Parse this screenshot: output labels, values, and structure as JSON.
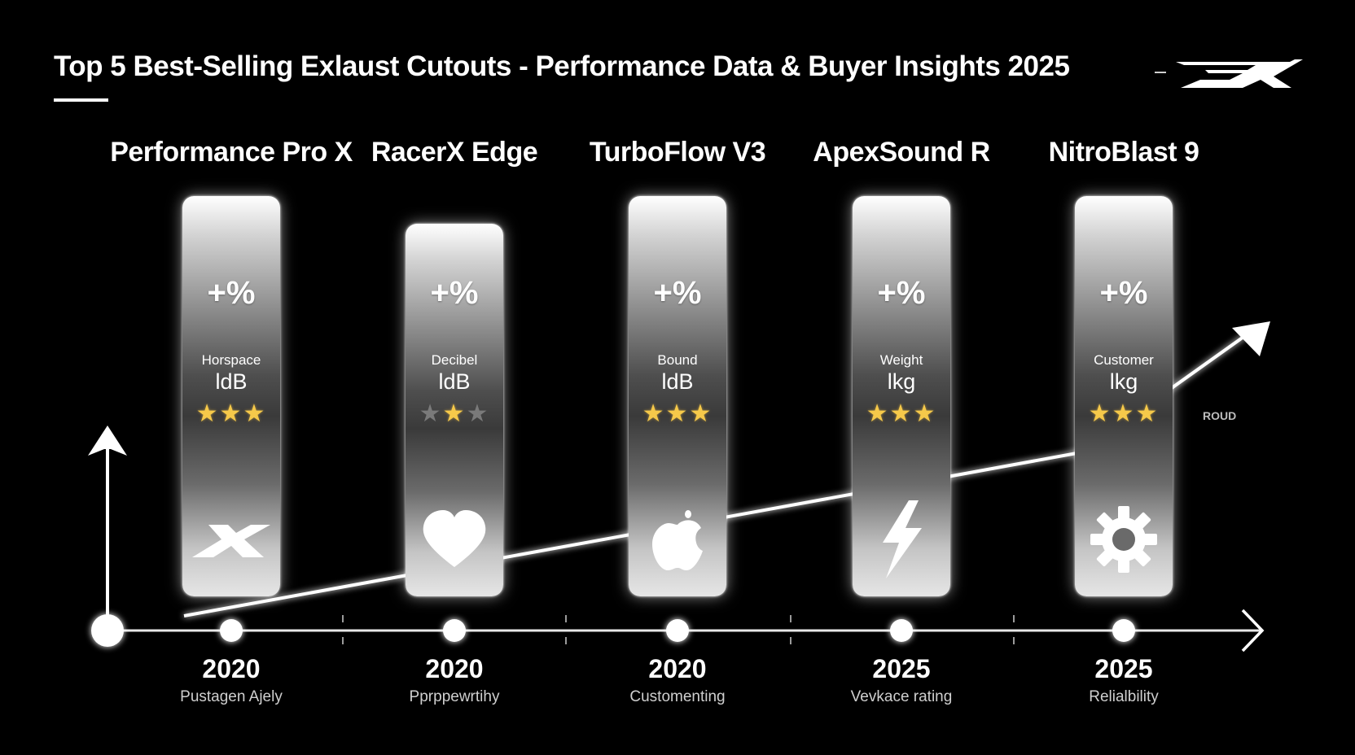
{
  "title": "Top 5 Best-Selling Exlaust Cutouts - Performance Data & Buyer Insights 2025",
  "chart_data": {
    "type": "bar",
    "title": "Top 5 Best-Selling Exlaust Cutouts - Performance Data & Buyer Insights 2025",
    "categories": [
      "Performance Pro X",
      "RacerX Edge",
      "TurboFlow V3",
      "ApexSound R",
      "NitroBlast 9"
    ],
    "bars": [
      {
        "name": "Performance Pro X",
        "value_text": "+%",
        "metric": "Horspace",
        "unit": "ldB",
        "stars": 3,
        "stars_max": 3,
        "icon": "x-logo-icon",
        "year": "2020",
        "caption": "Pustagen Ajely",
        "relative_height": 1.0
      },
      {
        "name": "RacerX Edge",
        "value_text": "+%",
        "metric": "Decibel",
        "unit": "ldB",
        "stars": 1,
        "stars_max": 3,
        "icon": "heart-icon",
        "year": "2020",
        "caption": "Pprppewrtihy",
        "relative_height": 0.93
      },
      {
        "name": "TurboFlow V3",
        "value_text": "+%",
        "metric": "Bound",
        "unit": "ldB",
        "stars": 3,
        "stars_max": 3,
        "icon": "apple-icon",
        "year": "2020",
        "caption": "Customenting",
        "relative_height": 1.0
      },
      {
        "name": "ApexSound R",
        "value_text": "+%",
        "metric": "Weight",
        "unit": "lkg",
        "stars": 3,
        "stars_max": 3,
        "icon": "lightning-icon",
        "year": "2025",
        "caption": "Vevkace rating",
        "relative_height": 1.0
      },
      {
        "name": "NitroBlast 9",
        "value_text": "+%",
        "metric": "Customer",
        "unit": "lkg",
        "stars": 3,
        "stars_max": 3,
        "icon": "gear-icon",
        "year": "2025",
        "caption": "Relialbility",
        "relative_height": 1.0
      }
    ],
    "trend": {
      "type": "line",
      "label": "ROUD",
      "direction": "up"
    },
    "xlabel": "",
    "ylabel": ""
  },
  "colors": {
    "background": "#000000",
    "star": "#f6c94a",
    "star_off": "#7a7a7a",
    "text": "#ffffff"
  }
}
